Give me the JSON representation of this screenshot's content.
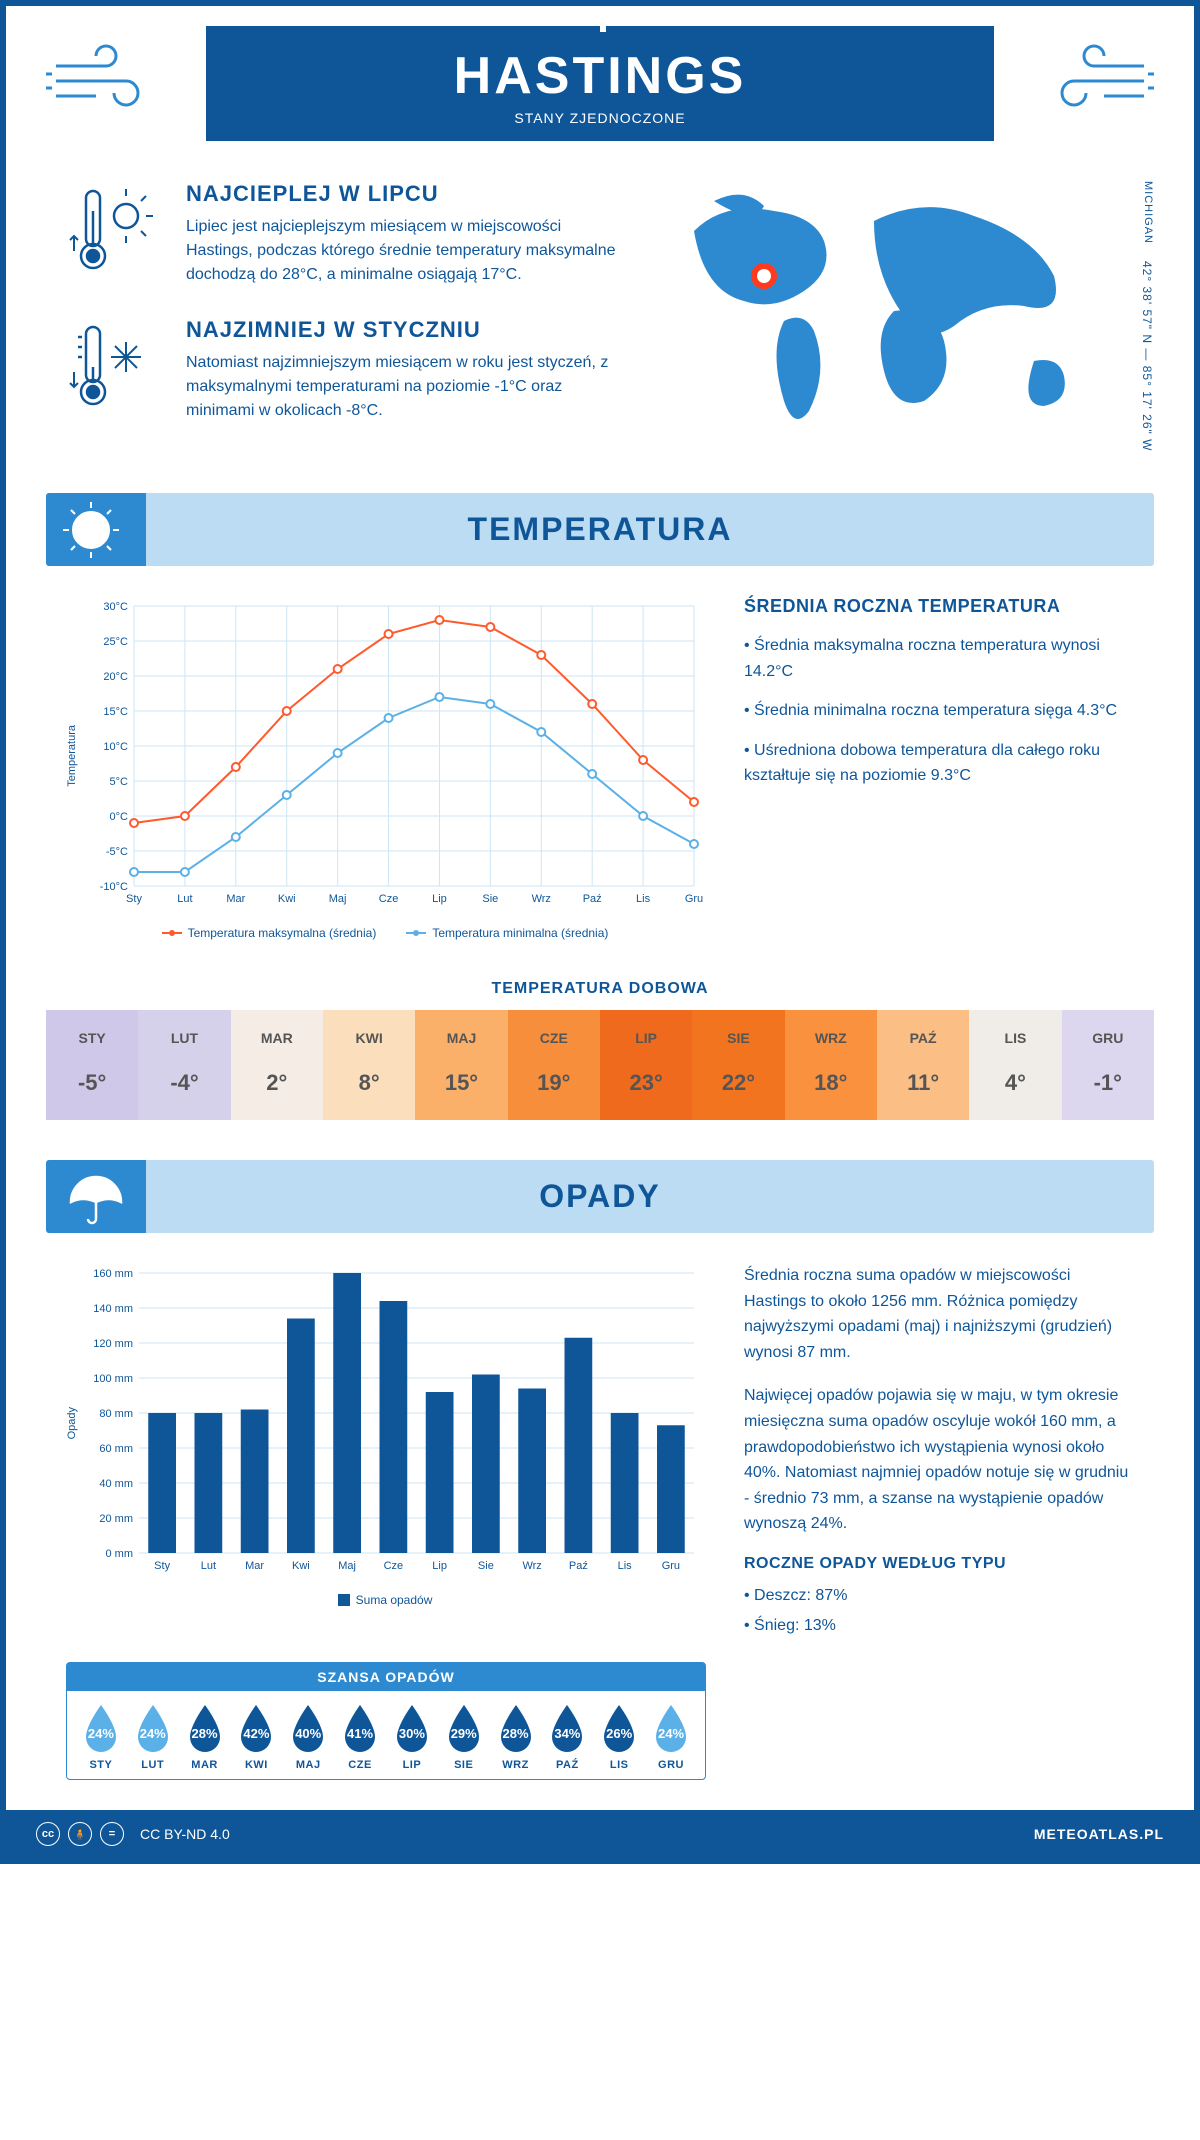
{
  "header": {
    "title": "HASTINGS",
    "subtitle": "STANY ZJEDNOCZONE"
  },
  "intro": {
    "warmest": {
      "title": "NAJCIEPLEJ W LIPCU",
      "text": "Lipiec jest najcieplejszym miesiącem w miejscowości Hastings, podczas którego średnie temperatury maksymalne dochodzą do 28°C, a minimalne osiągają 17°C."
    },
    "coldest": {
      "title": "NAJZIMNIEJ W STYCZNIU",
      "text": "Natomiast najzimniejszym miesiącem w roku jest styczeń, z maksymalnymi temperaturami na poziomie -1°C oraz minimami w okolicach -8°C."
    },
    "coords": "42° 38' 57\" N — 85° 17' 26\" W",
    "region": "MICHIGAN",
    "map": {
      "marker_color": "#ff3b1f",
      "land_color": "#2e8ad0"
    }
  },
  "temperature": {
    "section_title": "TEMPERATURA",
    "chart": {
      "type": "line",
      "months": [
        "Sty",
        "Lut",
        "Mar",
        "Kwi",
        "Maj",
        "Cze",
        "Lip",
        "Sie",
        "Wrz",
        "Paź",
        "Lis",
        "Gru"
      ],
      "max_series": [
        -1,
        0,
        7,
        15,
        21,
        26,
        28,
        27,
        23,
        16,
        8,
        2
      ],
      "min_series": [
        -8,
        -8,
        -3,
        3,
        9,
        14,
        17,
        16,
        12,
        6,
        0,
        -4
      ],
      "max_color": "#ff5a2c",
      "min_color": "#5bb0e8",
      "grid_color": "#cde5f5",
      "ylim": [
        -10,
        30
      ],
      "ytick_step": 5,
      "y_label": "Temperatura",
      "legend_max": "Temperatura maksymalna (średnia)",
      "legend_min": "Temperatura minimalna (średnia)"
    },
    "info": {
      "title": "ŚREDNIA ROCZNA TEMPERATURA",
      "bullets": [
        "• Średnia maksymalna roczna temperatura wynosi 14.2°C",
        "• Średnia minimalna roczna temperatura sięga 4.3°C",
        "• Uśredniona dobowa temperatura dla całego roku kształtuje się na poziomie 9.3°C"
      ]
    },
    "daily": {
      "title": "TEMPERATURA DOBOWA",
      "months": [
        "STY",
        "LUT",
        "MAR",
        "KWI",
        "MAJ",
        "CZE",
        "LIP",
        "SIE",
        "WRZ",
        "PAŹ",
        "LIS",
        "GRU"
      ],
      "values": [
        "-5°",
        "-4°",
        "2°",
        "8°",
        "15°",
        "19°",
        "23°",
        "22°",
        "18°",
        "11°",
        "4°",
        "-1°"
      ],
      "bg_colors": [
        "#cfc8e8",
        "#d6d1eb",
        "#f4ece5",
        "#fbdfbc",
        "#fbb06a",
        "#f78e3c",
        "#f06a1d",
        "#f3741f",
        "#f9913f",
        "#fbbe84",
        "#f0ece8",
        "#dcd7ee"
      ],
      "text_color": "#6a6a6a",
      "value_color": "#555"
    }
  },
  "precip": {
    "section_title": "OPADY",
    "chart": {
      "type": "bar",
      "months": [
        "Sty",
        "Lut",
        "Mar",
        "Kwi",
        "Maj",
        "Cze",
        "Lip",
        "Sie",
        "Wrz",
        "Paź",
        "Lis",
        "Gru"
      ],
      "values": [
        80,
        80,
        82,
        134,
        160,
        144,
        92,
        102,
        94,
        123,
        80,
        73
      ],
      "bar_color": "#0f5699",
      "grid_color": "#cde5f5",
      "ylim": [
        0,
        160
      ],
      "ytick_step": 20,
      "y_label": "Opady",
      "legend": "Suma opadów"
    },
    "info": {
      "p1": "Średnia roczna suma opadów w miejscowości Hastings to około 1256 mm. Różnica pomiędzy najwyższymi opadami (maj) i najniższymi (grudzień) wynosi 87 mm.",
      "p2": "Najwięcej opadów pojawia się w maju, w tym okresie miesięczna suma opadów oscyluje wokół 160 mm, a prawdopodobieństwo ich wystąpienia wynosi około 40%. Natomiast najmniej opadów notuje się w grudniu - średnio 73 mm, a szanse na wystąpienie opadów wynoszą 24%.",
      "type_title": "ROCZNE OPADY WEDŁUG TYPU",
      "type_bullets": [
        "• Deszcz: 87%",
        "• Śnieg: 13%"
      ]
    },
    "chance": {
      "title": "SZANSA OPADÓW",
      "months": [
        "STY",
        "LUT",
        "MAR",
        "KWI",
        "MAJ",
        "CZE",
        "LIP",
        "SIE",
        "WRZ",
        "PAŹ",
        "LIS",
        "GRU"
      ],
      "values": [
        "24%",
        "24%",
        "28%",
        "42%",
        "40%",
        "41%",
        "30%",
        "29%",
        "28%",
        "34%",
        "26%",
        "24%"
      ],
      "drop_colors": [
        "#5bb0e8",
        "#5bb0e8",
        "#0f5699",
        "#0f5699",
        "#0f5699",
        "#0f5699",
        "#0f5699",
        "#0f5699",
        "#0f5699",
        "#0f5699",
        "#0f5699",
        "#5bb0e8"
      ]
    }
  },
  "footer": {
    "license": "CC BY-ND 4.0",
    "brand": "METEOATLAS.PL"
  }
}
